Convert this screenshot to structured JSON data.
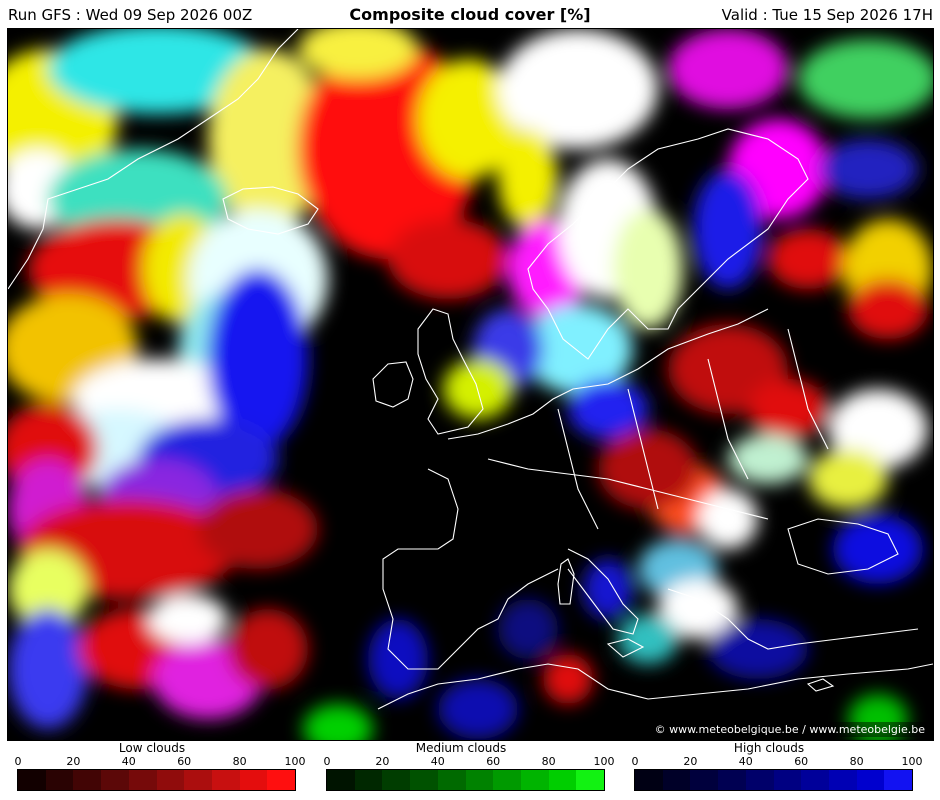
{
  "header": {
    "run": "Run GFS : Wed 09 Sep 2026 00Z",
    "title": "Composite cloud cover [%]",
    "valid": "Valid : Tue 15 Sep 2026 17H"
  },
  "credit": "© www.meteobelgique.be / www.meteobelgie.be",
  "legends": [
    {
      "name": "Low clouds",
      "ticks": [
        "0",
        "20",
        "40",
        "60",
        "80",
        "100"
      ],
      "colors": [
        "#120000",
        "#2a0303",
        "#420505",
        "#5c0808",
        "#760a0a",
        "#900c0c",
        "#ab0e0e",
        "#c81010",
        "#e40d0d",
        "#ff0f0f"
      ]
    },
    {
      "name": "Medium clouds",
      "ticks": [
        "0",
        "20",
        "40",
        "60",
        "80",
        "100"
      ],
      "colors": [
        "#001400",
        "#002800",
        "#003d00",
        "#005200",
        "#006a00",
        "#008200",
        "#009a00",
        "#00b400",
        "#00ce00",
        "#12f212"
      ]
    },
    {
      "name": "High clouds",
      "ticks": [
        "0",
        "20",
        "40",
        "60",
        "80",
        "100"
      ],
      "colors": [
        "#000014",
        "#000028",
        "#00003d",
        "#000052",
        "#00006a",
        "#000082",
        "#00009a",
        "#0000b4",
        "#0000ce",
        "#1212f2"
      ]
    }
  ]
}
